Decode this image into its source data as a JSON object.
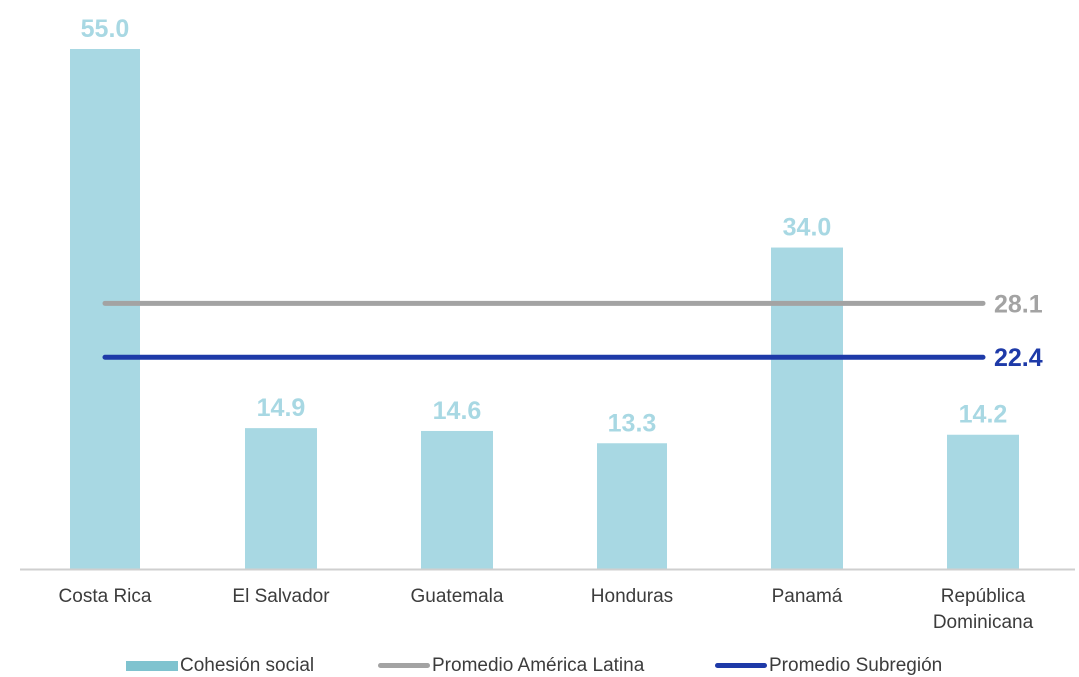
{
  "colors": {
    "bar": "#a8d8e3",
    "bar_label": "#a8d8e3",
    "latam_line": "#a3a3a3",
    "subregion_line": "#1e3aa8",
    "axis": "#cfcfcf",
    "tick_text": "#3c3c3c"
  },
  "chart_data": {
    "type": "bar",
    "categories": [
      "Costa Rica",
      "El Salvador",
      "Guatemala",
      "Honduras",
      "Panamá",
      "República Dominicana"
    ],
    "category_lines": [
      [
        "Costa Rica"
      ],
      [
        "El Salvador"
      ],
      [
        "Guatemala"
      ],
      [
        "Honduras"
      ],
      [
        "Panamá"
      ],
      [
        "República",
        "Dominicana"
      ]
    ],
    "series": [
      {
        "name": "Cohesión social",
        "type": "bar",
        "values": [
          55.0,
          14.9,
          14.6,
          13.3,
          34.0,
          14.2
        ],
        "labels": [
          "55.0",
          "14.9",
          "14.6",
          "13.3",
          "34.0",
          "14.2"
        ]
      },
      {
        "name": "Promedio América Latina",
        "type": "line",
        "value": 28.1,
        "label": "28.1"
      },
      {
        "name": "Promedio Subregión",
        "type": "line",
        "value": 22.4,
        "label": "22.4"
      }
    ],
    "ylim": [
      0,
      55
    ],
    "grid": false,
    "legend_position": "bottom"
  },
  "legend": {
    "bars_label": "Cohesión social",
    "latam_label": "Promedio América Latina",
    "subregion_label": "Promedio Subregión"
  }
}
